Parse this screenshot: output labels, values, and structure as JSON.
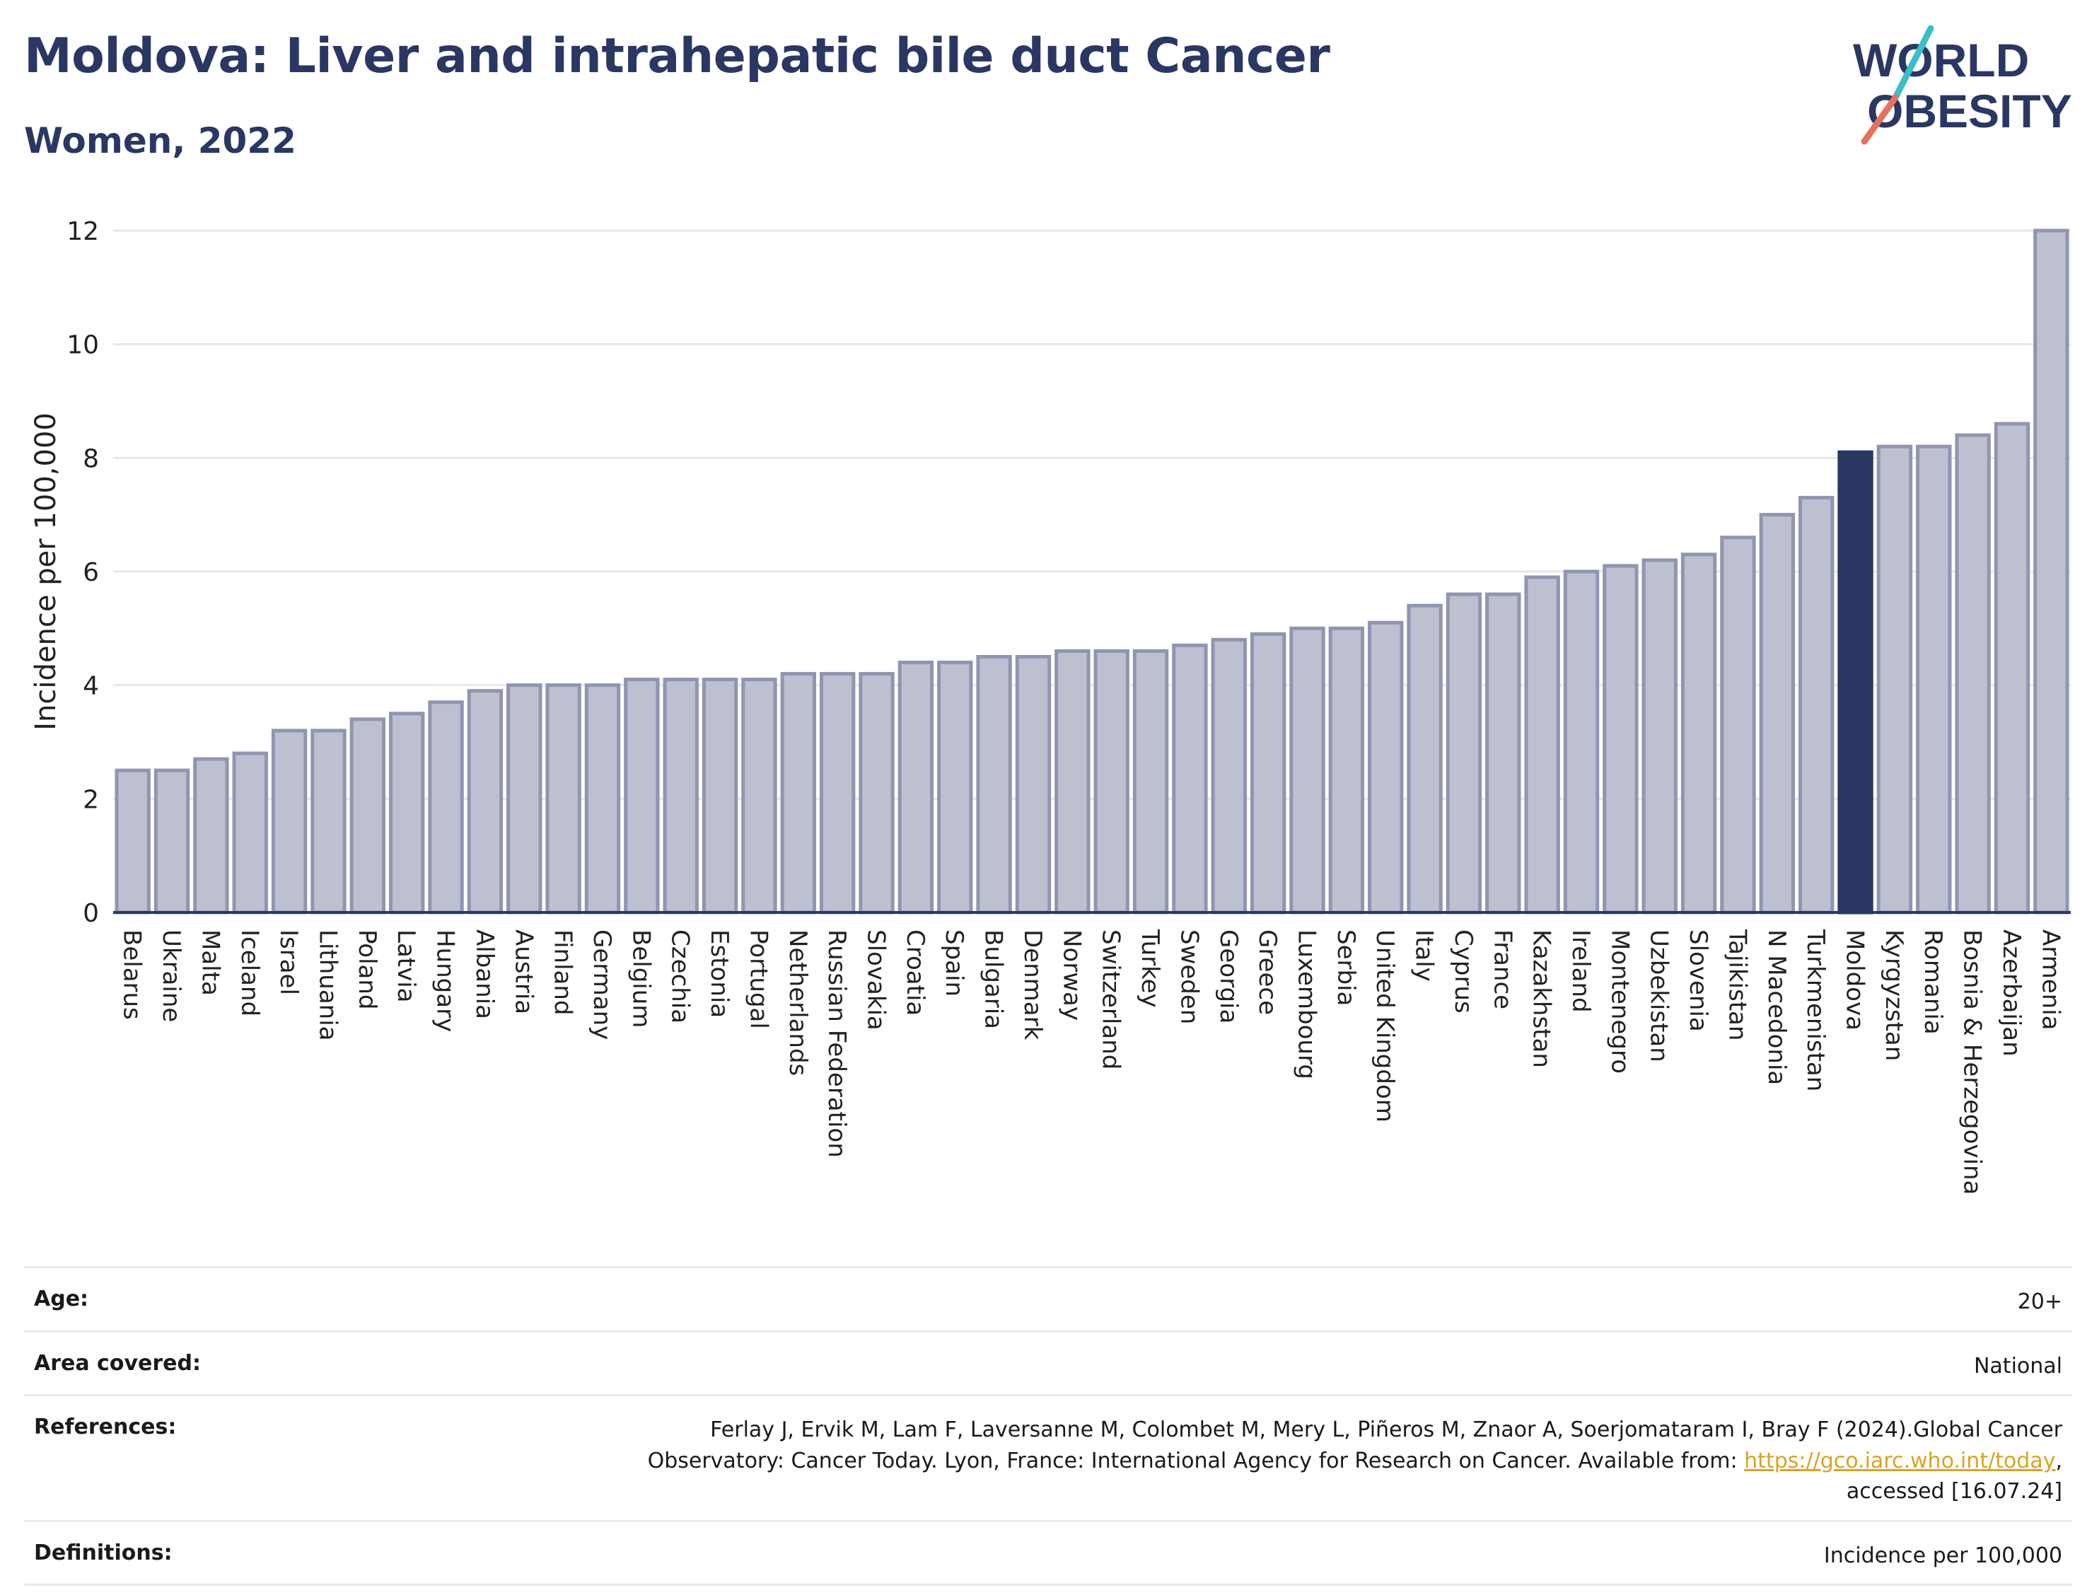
{
  "header": {
    "title": "Moldova: Liver and intrahepatic bile duct Cancer",
    "subtitle": "Women, 2022"
  },
  "logo": {
    "line1": "WORLD",
    "line2": "OBESITY"
  },
  "colors": {
    "bar": "#bcc0d0",
    "bar_border": "#9095b0",
    "highlight": "#2b3763",
    "title": "#2b3763",
    "link": "#d9a520",
    "grid": "#e3e8ee"
  },
  "chart_data": {
    "type": "bar",
    "ylabel": "Incidence per 100,000",
    "ylim": [
      0,
      12
    ],
    "yticks": [
      0,
      2,
      4,
      6,
      8,
      10,
      12
    ],
    "grid": true,
    "highlight": "Moldova",
    "categories": [
      "Belarus",
      "Ukraine",
      "Malta",
      "Iceland",
      "Israel",
      "Lithuania",
      "Poland",
      "Latvia",
      "Hungary",
      "Albania",
      "Austria",
      "Finland",
      "Germany",
      "Belgium",
      "Czechia",
      "Estonia",
      "Portugal",
      "Netherlands",
      "Russian Federation",
      "Slovakia",
      "Croatia",
      "Spain",
      "Bulgaria",
      "Denmark",
      "Norway",
      "Switzerland",
      "Turkey",
      "Sweden",
      "Georgia",
      "Greece",
      "Luxembourg",
      "Serbia",
      "United Kingdom",
      "Italy",
      "Cyprus",
      "France",
      "Kazakhstan",
      "Ireland",
      "Montenegro",
      "Uzbekistan",
      "Slovenia",
      "Tajikistan",
      "N Macedonia",
      "Turkmenistan",
      "Moldova",
      "Kyrgyzstan",
      "Romania",
      "Bosnia & Herzegovina",
      "Azerbaijan",
      "Armenia"
    ],
    "values": [
      2.5,
      2.5,
      2.7,
      2.8,
      3.2,
      3.2,
      3.4,
      3.5,
      3.7,
      3.9,
      4.0,
      4.0,
      4.0,
      4.1,
      4.1,
      4.1,
      4.1,
      4.2,
      4.2,
      4.2,
      4.4,
      4.4,
      4.5,
      4.5,
      4.6,
      4.6,
      4.6,
      4.7,
      4.8,
      4.9,
      5.0,
      5.0,
      5.1,
      5.4,
      5.6,
      5.6,
      5.9,
      6.0,
      6.1,
      6.2,
      6.3,
      6.6,
      7.0,
      7.3,
      8.1,
      8.2,
      8.2,
      8.4,
      8.6,
      12.0
    ]
  },
  "meta": {
    "age_label": "Age:",
    "age_value": "20+",
    "area_label": "Area covered:",
    "area_value": "National",
    "ref_label": "References:",
    "ref_text": "Ferlay J, Ervik M, Lam F, Laversanne M, Colombet M, Mery L, Piñeros M, Znaor A, Soerjomataram I, Bray F (2024).Global Cancer Observatory: Cancer Today. Lyon, France: International Agency for Research on Cancer. Available from: ",
    "ref_link": "https://gco.iarc.who.int/today",
    "ref_tail": ", accessed [16.07.24]",
    "def_label": "Definitions:",
    "def_value": "Incidence per 100,000"
  }
}
